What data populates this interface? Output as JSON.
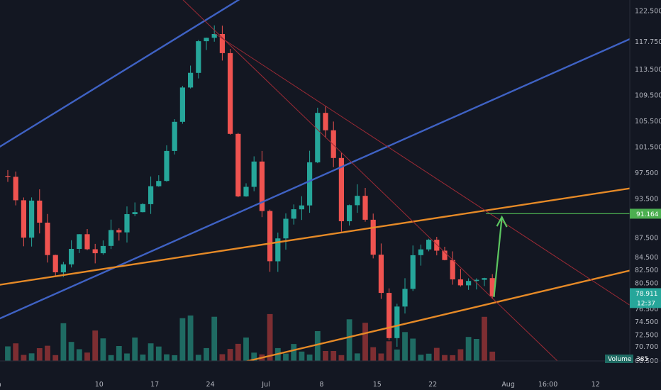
{
  "chart_data": {
    "type": "candlestick",
    "title": "",
    "xlabel": "",
    "ylabel": "",
    "ylim": [
      67.5,
      124.0
    ],
    "price_ticks": [
      "122.500",
      "117.750",
      "113.500",
      "109.500",
      "105.500",
      "101.500",
      "97.500",
      "93.500",
      "91.164",
      "87.500",
      "84.500",
      "82.500",
      "80.500",
      "78.911",
      "76.500",
      "74.500",
      "72.500",
      "70.700",
      "68.500"
    ],
    "price_tick_values": [
      122.5,
      117.75,
      113.5,
      109.5,
      105.5,
      101.5,
      97.5,
      93.5,
      91.164,
      87.5,
      84.5,
      82.5,
      80.5,
      78.911,
      76.5,
      74.5,
      72.5,
      70.7,
      68.5
    ],
    "time_labels": [
      "Jun",
      "10",
      "17",
      "24",
      "Jul",
      "8",
      "15",
      "22",
      "Aug",
      "16:00",
      "12"
    ],
    "time_label_bars": [
      -1.5,
      11.5,
      18.5,
      25.5,
      32.5,
      39.5,
      46.5,
      53.5,
      63,
      68,
      74
    ],
    "bar_count": 62,
    "price_path_anchors": [
      {
        "bar": 0,
        "price": 97
      },
      {
        "bar": 2,
        "price": 88
      },
      {
        "bar": 3,
        "price": 94
      },
      {
        "bar": 5,
        "price": 84
      },
      {
        "bar": 6,
        "price": 82
      },
      {
        "bar": 9,
        "price": 87
      },
      {
        "bar": 11,
        "price": 84
      },
      {
        "bar": 13,
        "price": 88
      },
      {
        "bar": 16,
        "price": 92
      },
      {
        "bar": 19,
        "price": 97
      },
      {
        "bar": 22,
        "price": 110
      },
      {
        "bar": 24,
        "price": 118
      },
      {
        "bar": 26,
        "price": 119
      },
      {
        "bar": 27,
        "price": 115
      },
      {
        "bar": 29,
        "price": 93
      },
      {
        "bar": 31,
        "price": 99
      },
      {
        "bar": 33,
        "price": 84
      },
      {
        "bar": 35,
        "price": 90
      },
      {
        "bar": 37,
        "price": 92
      },
      {
        "bar": 39,
        "price": 106
      },
      {
        "bar": 41,
        "price": 100
      },
      {
        "bar": 42,
        "price": 90
      },
      {
        "bar": 44,
        "price": 94
      },
      {
        "bar": 45,
        "price": 91
      },
      {
        "bar": 47,
        "price": 80
      },
      {
        "bar": 48,
        "price": 73
      },
      {
        "bar": 50,
        "price": 80
      },
      {
        "bar": 51,
        "price": 85
      },
      {
        "bar": 53,
        "price": 87
      },
      {
        "bar": 55,
        "price": 84
      },
      {
        "bar": 57,
        "price": 80
      },
      {
        "bar": 59,
        "price": 82
      },
      {
        "bar": 61,
        "price": 78.911
      }
    ],
    "up_color": "#26a69a",
    "down_color": "#ef5350",
    "lines": [
      {
        "name": "upper-blue-channel-line",
        "color": "#3f62c4",
        "from": {
          "bar": -1,
          "price": 101.5
        },
        "to": {
          "bar": 31.5,
          "price": 126
        }
      },
      {
        "name": "lower-blue-channel-line",
        "color": "#3f62c4",
        "from": {
          "bar": -1,
          "price": 75.0
        },
        "to": {
          "bar": 79,
          "price": 118.5
        }
      },
      {
        "name": "upper-orange-channel-line",
        "color": "#e68a27",
        "from": {
          "bar": -1,
          "price": 80.2
        },
        "to": {
          "bar": 79,
          "price": 95.2
        }
      },
      {
        "name": "lower-orange-channel-line",
        "color": "#e68a27",
        "from": {
          "bar": 27,
          "price": 67.5
        },
        "to": {
          "bar": 79,
          "price": 82.6
        }
      },
      {
        "name": "red-trendline-steep",
        "color": "#9c2a35",
        "from": {
          "bar": 20.5,
          "price": 126
        },
        "to": {
          "bar": 70,
          "price": 67.5
        }
      },
      {
        "name": "red-trendline-shallow",
        "color": "#9c2a35",
        "from": {
          "bar": 26,
          "price": 119
        },
        "to": {
          "bar": 79,
          "price": 76.5
        }
      }
    ],
    "target_price": 91.164,
    "target_label": "91.164",
    "target_color": "#4caf50",
    "last_price": 78.911,
    "last_price_label": "78.911",
    "countdown_label": "12:37",
    "volume_label": "Volume",
    "volume_value": "385"
  },
  "colors": {
    "background": "#131722",
    "axis_text": "#b2b5be",
    "last_price_tag": "#26a69a",
    "target_tag": "#4caf50",
    "arrow": "#5cc661"
  }
}
